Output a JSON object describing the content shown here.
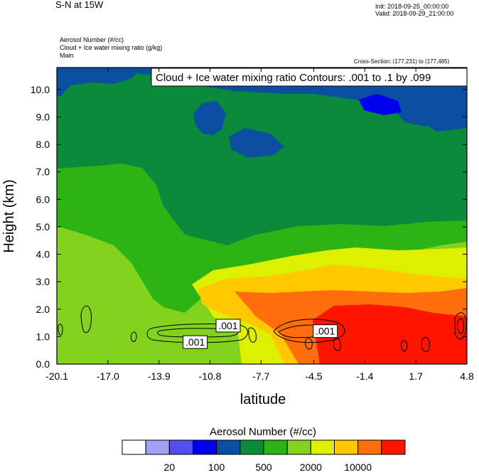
{
  "header": {
    "title": "S-N at 15W",
    "init": "Init: 2018-09-25_00:00:00",
    "valid": "Valid: 2018-09-29_21:00:00",
    "field_line_1": "Aerosol Number   (#/cc)",
    "field_line_2": "Cloud + Ice water mixing ratio   (g/kg)",
    "field_line_3": "Main",
    "cross_section": "Cross-Section: (177,231) to (177,485)"
  },
  "chart_data": {
    "type": "heatmap",
    "title": "Cloud + Ice water mixing ratio Contours: .001 to .1 by .099",
    "xlabel": "latitude",
    "ylabel": "Height (km)",
    "xlim": [
      -20.1,
      4.8
    ],
    "ylim": [
      0.0,
      10.8
    ],
    "x_ticks": [
      "-20.1",
      "-17.0",
      "-13.9",
      "-10.8",
      "-7.7",
      "-4.5",
      "-1.4",
      "1.7",
      "4.8"
    ],
    "y_ticks": [
      "0.0",
      "1.0",
      "2.0",
      "3.0",
      "4.0",
      "5.0",
      "6.0",
      "7.0",
      "8.0",
      "9.0",
      "10.0"
    ],
    "contour_labels": [
      {
        "text": ".001",
        "lat": -11.7,
        "height": 0.8
      },
      {
        "text": ".001",
        "lat": -9.7,
        "height": 1.4
      },
      {
        "text": ".001",
        "lat": -3.8,
        "height": 1.2
      }
    ],
    "colorbar": {
      "title": "Aerosol Number  (#/cc)",
      "colors": [
        "#ffffff",
        "#a0a0f5",
        "#5050f0",
        "#0000ee",
        "#0a4fa0",
        "#0a8a3a",
        "#2db414",
        "#82d21e",
        "#dcf000",
        "#ffc800",
        "#ff6e0a",
        "#ff1400"
      ],
      "tick_labels": [
        "20",
        "100",
        "500",
        "2000",
        "10000"
      ]
    }
  }
}
